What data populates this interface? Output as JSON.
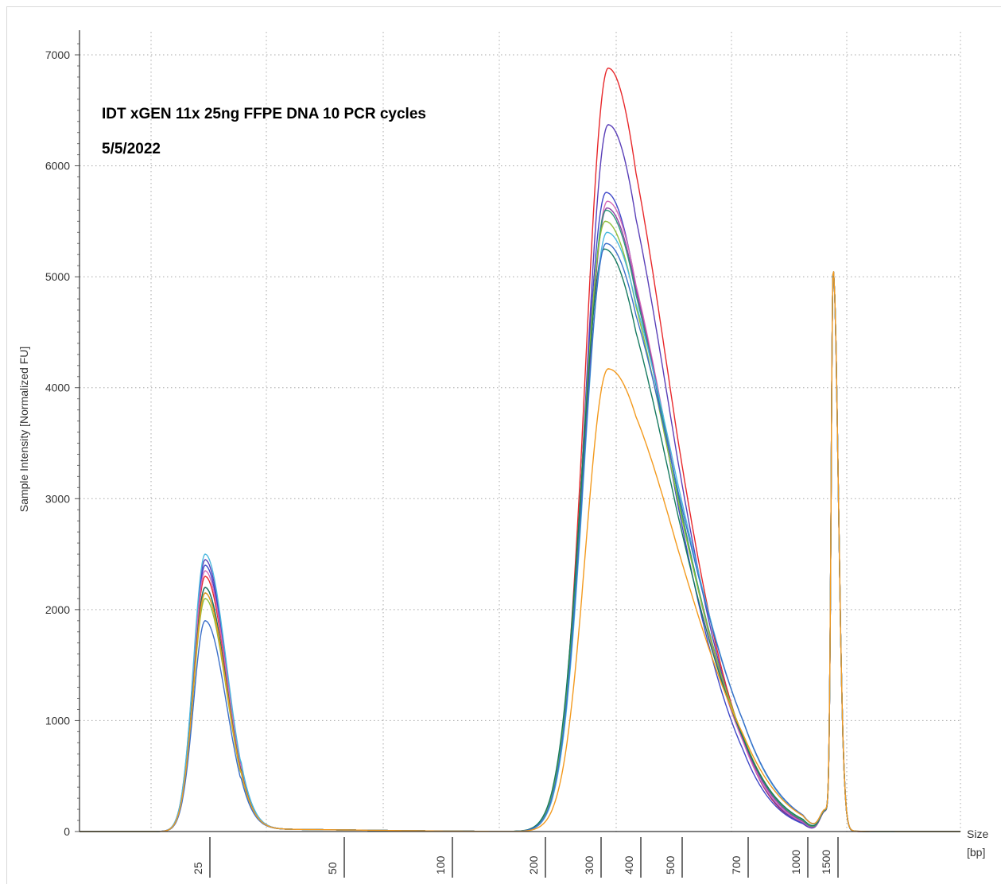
{
  "chart_data": {
    "type": "line",
    "annotations": [
      "IDT xGEN 11x 25ng FFPE DNA 10 PCR cycles",
      "5/5/2022"
    ],
    "ylabel": "Sample Intensity [Normalized FU]",
    "xlabel": [
      "Size",
      "[bp]"
    ],
    "ylim": [
      0,
      7200
    ],
    "yticks": [
      0,
      1000,
      2000,
      3000,
      4000,
      5000,
      6000,
      7000
    ],
    "xticks": [
      "25",
      "50",
      "100",
      "200",
      "300",
      "400",
      "500",
      "700",
      "1000",
      "1500"
    ],
    "x_scale": "log",
    "grid": true,
    "legend": "none",
    "series": [
      {
        "color": "#e8282b",
        "peaks": [
          {
            "x": 25,
            "y": 2300
          },
          {
            "x": 327,
            "y": 6880
          },
          {
            "x": 1500,
            "y": 5000
          }
        ]
      },
      {
        "color": "#5a3fb8",
        "peaks": [
          {
            "x": 25,
            "y": 2450
          },
          {
            "x": 327,
            "y": 6370
          },
          {
            "x": 1500,
            "y": 5000
          }
        ]
      },
      {
        "color": "#3f48c8",
        "peaks": [
          {
            "x": 25,
            "y": 2400
          },
          {
            "x": 322,
            "y": 5760
          },
          {
            "x": 1500,
            "y": 5000
          }
        ]
      },
      {
        "color": "#d56ab8",
        "peaks": [
          {
            "x": 25,
            "y": 2350
          },
          {
            "x": 325,
            "y": 5680
          },
          {
            "x": 1500,
            "y": 5000
          }
        ]
      },
      {
        "color": "#8d3fa3",
        "peaks": [
          {
            "x": 25,
            "y": 2200
          },
          {
            "x": 324,
            "y": 5620
          },
          {
            "x": 1500,
            "y": 5000
          }
        ]
      },
      {
        "color": "#2a9a7a",
        "peaks": [
          {
            "x": 25,
            "y": 2150
          },
          {
            "x": 322,
            "y": 5600
          },
          {
            "x": 1500,
            "y": 5000
          }
        ]
      },
      {
        "color": "#8fbf3a",
        "peaks": [
          {
            "x": 25,
            "y": 2100
          },
          {
            "x": 320,
            "y": 5500
          },
          {
            "x": 1500,
            "y": 5000
          }
        ]
      },
      {
        "color": "#157a60",
        "peaks": [
          {
            "x": 25,
            "y": 2200
          },
          {
            "x": 318,
            "y": 5250
          },
          {
            "x": 1500,
            "y": 5000
          }
        ]
      },
      {
        "color": "#4bb8e0",
        "peaks": [
          {
            "x": 25,
            "y": 2500
          },
          {
            "x": 324,
            "y": 5400
          },
          {
            "x": 1500,
            "y": 5000
          }
        ]
      },
      {
        "color": "#3b6fc9",
        "peaks": [
          {
            "x": 25,
            "y": 1900
          },
          {
            "x": 322,
            "y": 5300
          },
          {
            "x": 1500,
            "y": 5000
          }
        ]
      },
      {
        "color": "#f39a1e",
        "peaks": [
          {
            "x": 25,
            "y": 2150
          },
          {
            "x": 327,
            "y": 4170
          },
          {
            "x": 1500,
            "y": 5000
          }
        ]
      }
    ]
  }
}
